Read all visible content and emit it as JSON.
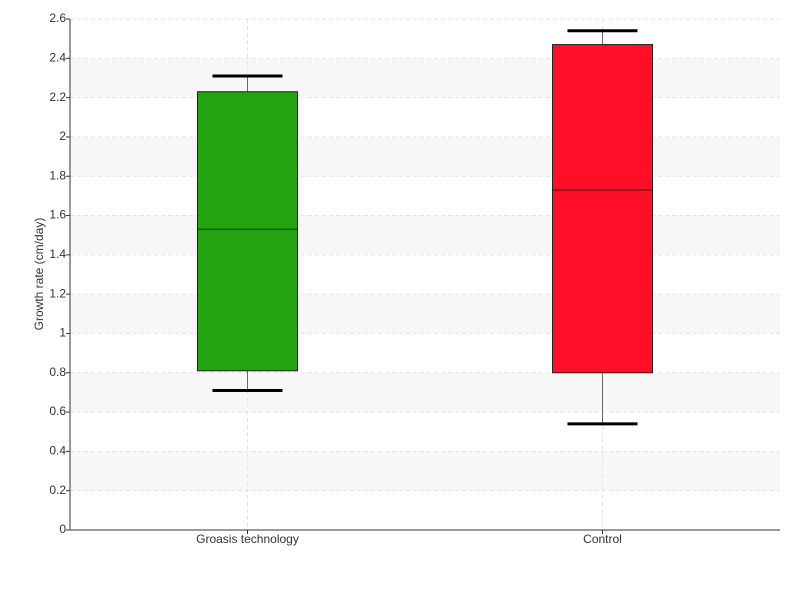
{
  "chart_data": {
    "type": "box",
    "y_label": "Growth rate (cm/day)",
    "categories": [
      "Groasis technology",
      "Control"
    ],
    "boxes": [
      {
        "color": "#22a30f",
        "min": 0.71,
        "q1": 0.81,
        "median": 1.53,
        "q3": 2.23,
        "max": 2.31
      },
      {
        "color": "#ff0f27",
        "min": 0.54,
        "q1": 0.8,
        "median": 1.73,
        "q3": 2.47,
        "max": 2.54
      }
    ],
    "ylim": [
      0,
      2.6
    ],
    "yticks": [
      0,
      0.2,
      0.4,
      0.6,
      0.8,
      1,
      1.2,
      1.4,
      1.6,
      1.8,
      2,
      2.2,
      2.4,
      2.6
    ],
    "grid": true
  }
}
